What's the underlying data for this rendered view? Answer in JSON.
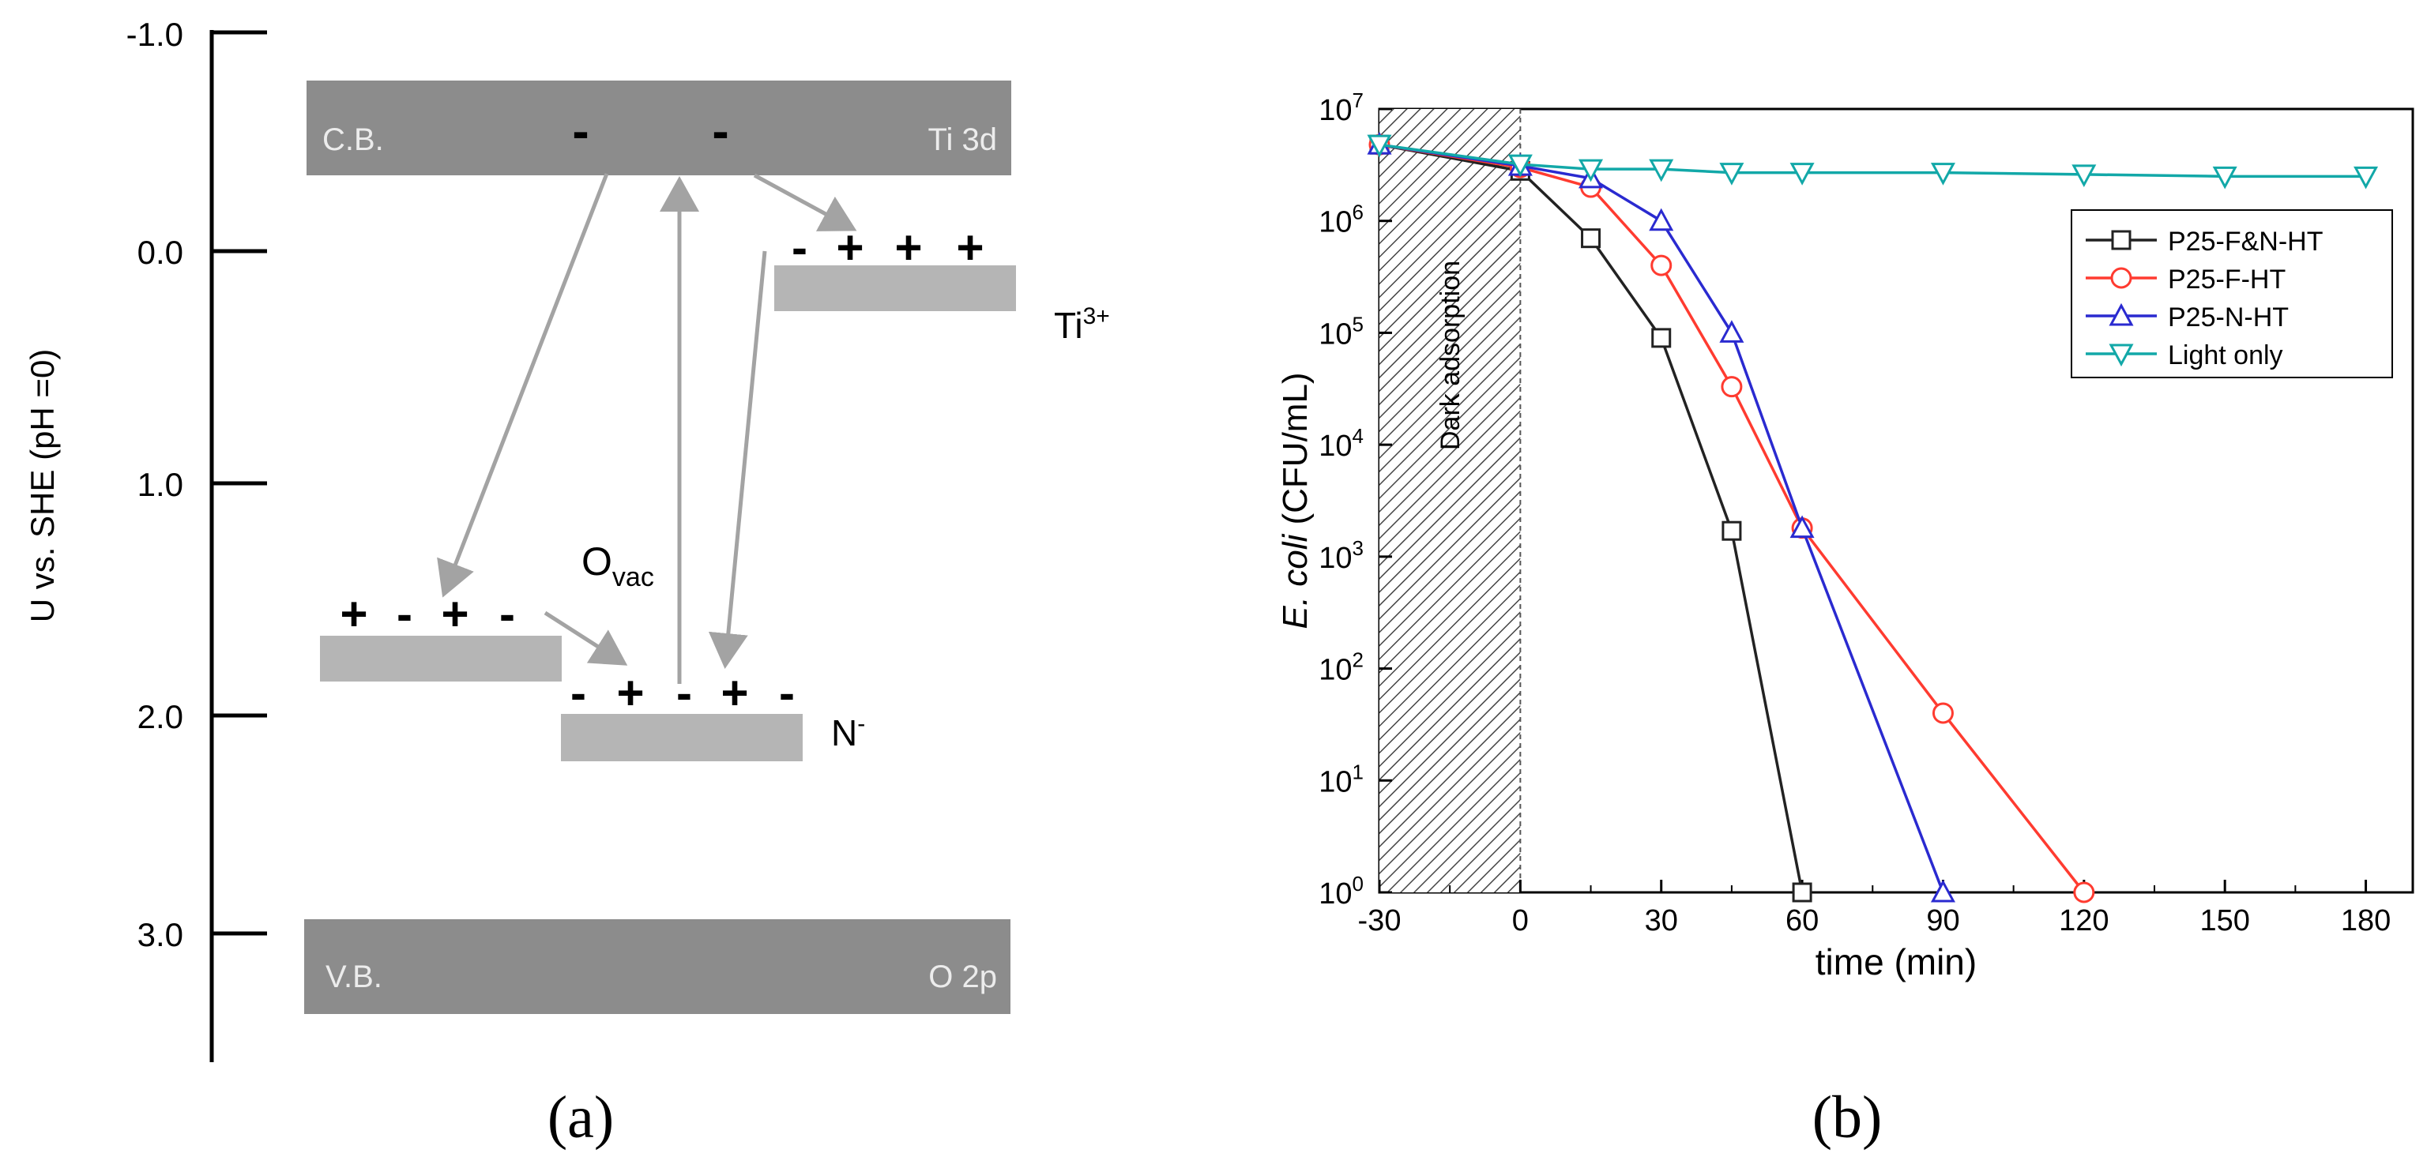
{
  "panel_a": {
    "label": "(a)",
    "y_axis_label": "U vs. SHE (pH =0)",
    "ticks": [
      {
        "value": -1.0,
        "label": "-1.0"
      },
      {
        "value": 0.0,
        "label": "0.0"
      },
      {
        "value": 1.0,
        "label": "1.0"
      },
      {
        "value": 2.0,
        "label": "2.0"
      },
      {
        "value": 3.0,
        "label": "3.0"
      }
    ],
    "cb_left": "C.B.",
    "cb_right": "Ti 3d",
    "vb_left": "V.B.",
    "vb_right": "O 2p",
    "ti3_base": "Ti",
    "ti3_sup": "3+",
    "n_base": "N",
    "n_sup": "-",
    "ovac_base": "O",
    "ovac_sub": "vac",
    "cb_charges": [
      "-",
      "-"
    ],
    "ti3_charges": [
      "-",
      "+",
      "+",
      "+"
    ],
    "left_charges": [
      "+",
      "-",
      "+",
      "-"
    ],
    "n_charges": [
      "-",
      "+",
      "-",
      "+",
      "-"
    ]
  },
  "panel_b": {
    "label": "(b)",
    "dark_label": "Dark adsorption"
  },
  "chart_data": {
    "type": "line",
    "title": "",
    "xlabel": "time (min)",
    "ylabel_italic": "E. coli",
    "ylabel_rest": " (CFU/mL)",
    "yscale": "log",
    "xlim": [
      -30,
      190
    ],
    "ylim": [
      1,
      10000000
    ],
    "x_ticks": [
      -30,
      0,
      30,
      60,
      90,
      120,
      150,
      180
    ],
    "y_tick_exponents": [
      0,
      1,
      2,
      3,
      4,
      5,
      6,
      7
    ],
    "y_tick_base": "10",
    "shaded_region": [
      -30,
      0
    ],
    "legend_position": "top-right",
    "series": [
      {
        "name": "P25-F&N-HT",
        "color": "#222222",
        "marker": "square",
        "points": [
          [
            -30,
            4800000
          ],
          [
            0,
            2800000
          ],
          [
            15,
            700000
          ],
          [
            30,
            90000
          ],
          [
            45,
            1700
          ],
          [
            60,
            1
          ]
        ]
      },
      {
        "name": "P25-F-HT",
        "color": "#ff3b30",
        "marker": "circle",
        "points": [
          [
            -30,
            4800000
          ],
          [
            0,
            3000000
          ],
          [
            15,
            2000000
          ],
          [
            30,
            400000
          ],
          [
            45,
            33000
          ],
          [
            60,
            1800
          ],
          [
            90,
            40
          ],
          [
            120,
            1
          ]
        ]
      },
      {
        "name": "P25-N-HT",
        "color": "#2a2ad0",
        "marker": "triangle-up",
        "points": [
          [
            -30,
            4800000
          ],
          [
            0,
            3100000
          ],
          [
            15,
            2400000
          ],
          [
            30,
            1000000
          ],
          [
            45,
            100000
          ],
          [
            60,
            1800
          ],
          [
            90,
            1
          ]
        ]
      },
      {
        "name": "Light only",
        "color": "#12a8a8",
        "marker": "triangle-down",
        "points": [
          [
            -30,
            4800000
          ],
          [
            0,
            3200000
          ],
          [
            15,
            2900000
          ],
          [
            30,
            2900000
          ],
          [
            45,
            2700000
          ],
          [
            60,
            2700000
          ],
          [
            90,
            2700000
          ],
          [
            120,
            2600000
          ],
          [
            150,
            2500000
          ],
          [
            180,
            2500000
          ]
        ]
      }
    ]
  }
}
